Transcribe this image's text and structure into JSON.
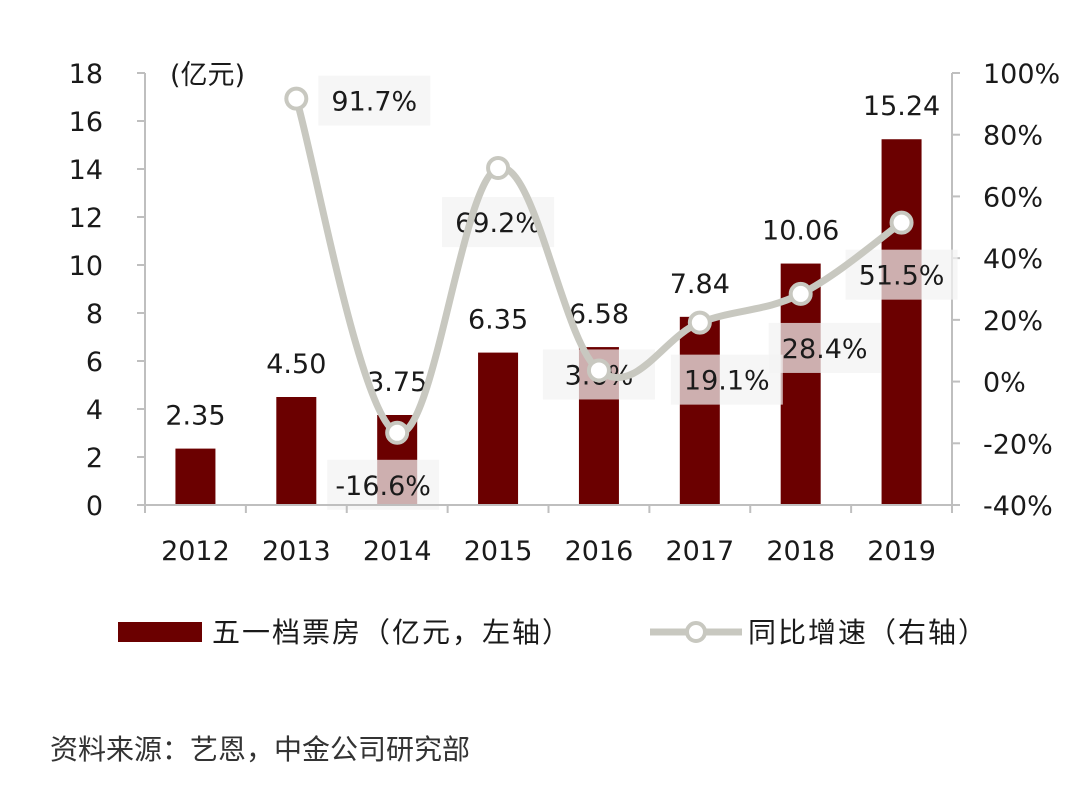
{
  "chart_data": {
    "type": "bar+line",
    "categories": [
      "2012",
      "2013",
      "2014",
      "2015",
      "2016",
      "2017",
      "2018",
      "2019"
    ],
    "series": [
      {
        "name": "五一档票房（亿元，左轴）",
        "type": "bar",
        "axis": "left",
        "color": "#6b0000",
        "values": [
          2.35,
          4.5,
          3.75,
          6.35,
          6.58,
          7.84,
          10.06,
          15.24
        ],
        "labels": [
          "2.35",
          "4.50",
          "3.75",
          "6.35",
          "6.58",
          "7.84",
          "10.06",
          "15.24"
        ]
      },
      {
        "name": "同比增速（右轴）",
        "type": "line",
        "axis": "right",
        "color": "#c8c8c0",
        "values": [
          null,
          91.7,
          -16.6,
          69.2,
          3.6,
          19.1,
          28.4,
          51.5
        ],
        "labels": [
          "",
          "91.7%",
          "-16.6%",
          "69.2%",
          "3.6%",
          "19.1%",
          "28.4%",
          "51.5%"
        ]
      }
    ],
    "left_axis": {
      "unit_label": "(亿元)",
      "ylim": [
        0,
        18
      ],
      "ticks": [
        0,
        2,
        4,
        6,
        8,
        10,
        12,
        14,
        16,
        18
      ],
      "tick_labels": [
        "0",
        "2",
        "4",
        "6",
        "8",
        "10",
        "12",
        "14",
        "16",
        "18"
      ]
    },
    "right_axis": {
      "ylim": [
        -40,
        100
      ],
      "ticks": [
        -40,
        -20,
        0,
        20,
        40,
        60,
        80,
        100
      ],
      "tick_labels": [
        "-40%",
        "-20%",
        "0%",
        "20%",
        "40%",
        "60%",
        "80%",
        "100%"
      ]
    },
    "legend": {
      "position": "bottom",
      "items": [
        "五一档票房（亿元，左轴）",
        "同比增速（右轴）"
      ]
    }
  },
  "source": "资料来源：艺恩，中金公司研究部"
}
